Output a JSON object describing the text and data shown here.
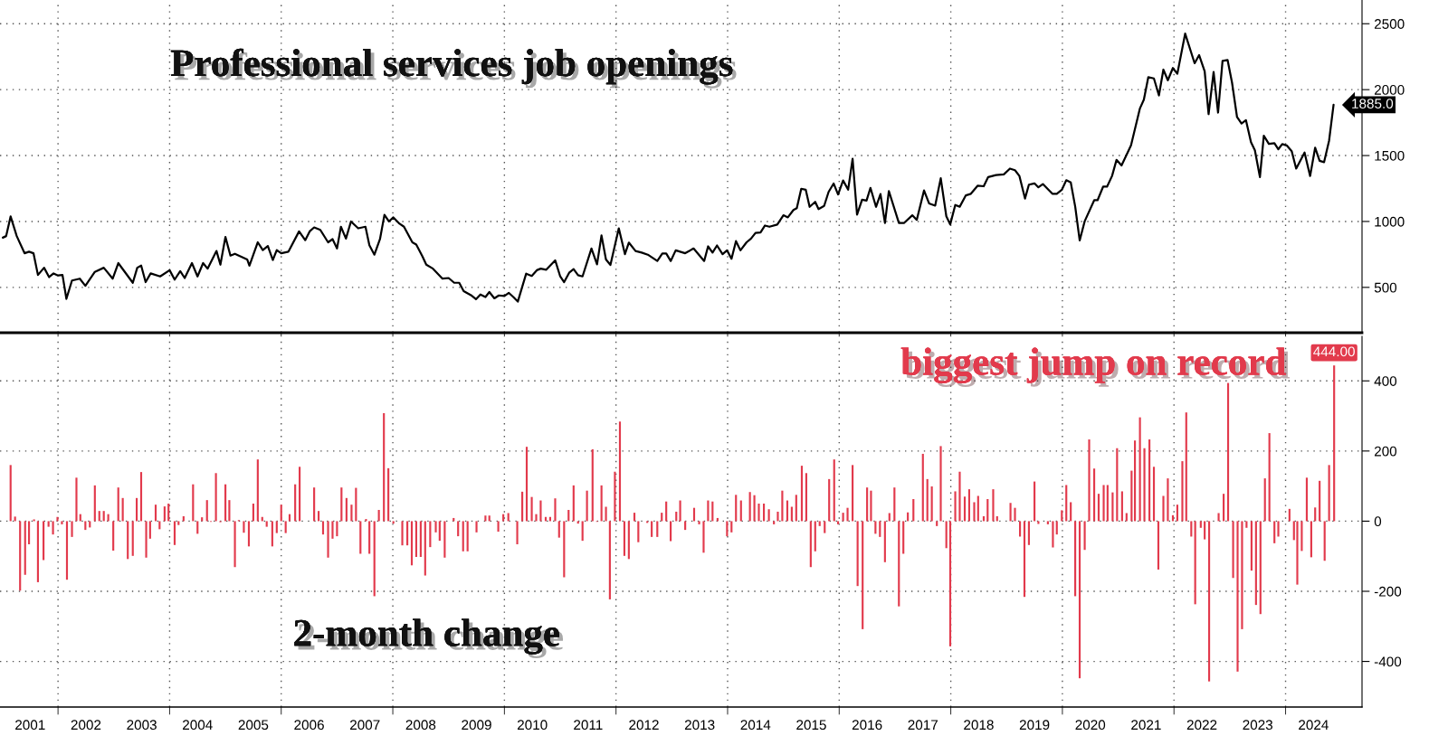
{
  "chart_data": [
    {
      "type": "line",
      "title": "Professional services job openings",
      "xlim": [
        2000.96,
        2025.37
      ],
      "ylim": [
        156,
        2680
      ],
      "yticks": [
        500,
        1000,
        1500,
        2000,
        2500
      ],
      "xticks": [
        {
          "value": 2002,
          "label": null
        },
        {
          "value": 2004,
          "label": null
        },
        {
          "value": 2006,
          "label": null
        },
        {
          "value": 2008,
          "label": null
        },
        {
          "value": 2010,
          "label": null
        },
        {
          "value": 2012,
          "label": null
        },
        {
          "value": 2014,
          "label": null
        },
        {
          "value": 2016,
          "label": null
        },
        {
          "value": 2018,
          "label": null
        },
        {
          "value": 2020,
          "label": null
        },
        {
          "value": 2022,
          "label": null
        },
        {
          "value": 2024,
          "label": null
        }
      ],
      "tick_labels": "y",
      "grid": true,
      "legend": false,
      "series": [
        {
          "color": "#000000",
          "x": [
            2001.01,
            2001.07,
            2001.15,
            2001.26,
            2001.4,
            2001.48,
            2001.56,
            2001.64,
            2001.75,
            2001.84,
            2001.92,
            2002.0,
            2002.08,
            2002.15,
            2002.25,
            2002.39,
            2002.49,
            2002.66,
            2002.82,
            2002.98,
            2003.08,
            2003.34,
            2003.42,
            2003.49,
            2003.57,
            2003.66,
            2003.83,
            2004.0,
            2004.09,
            2004.19,
            2004.27,
            2004.4,
            2004.5,
            2004.6,
            2004.68,
            2004.84,
            2004.91,
            2005.0,
            2005.09,
            2005.17,
            2005.39,
            2005.43,
            2005.58,
            2005.67,
            2005.76,
            2005.85,
            2005.92,
            2006.0,
            2006.13,
            2006.32,
            2006.43,
            2006.51,
            2006.59,
            2006.7,
            2006.84,
            2006.92,
            2007.0,
            2007.07,
            2007.16,
            2007.25,
            2007.38,
            2007.51,
            2007.58,
            2007.67,
            2007.77,
            2007.85,
            2007.93,
            2008.01,
            2008.12,
            2008.2,
            2008.35,
            2008.42,
            2008.53,
            2008.6,
            2008.72,
            2008.89,
            2009.0,
            2009.1,
            2009.19,
            2009.27,
            2009.4,
            2009.49,
            2009.57,
            2009.66,
            2009.73,
            2009.82,
            2009.9,
            2010.0,
            2010.08,
            2010.16,
            2010.24,
            2010.39,
            2010.49,
            2010.58,
            2010.65,
            2010.75,
            2010.91,
            2011.0,
            2011.07,
            2011.16,
            2011.24,
            2011.32,
            2011.4,
            2011.56,
            2011.66,
            2011.74,
            2011.82,
            2011.9,
            2012.05,
            2012.16,
            2012.23,
            2012.35,
            2012.46,
            2012.57,
            2012.74,
            2012.83,
            2012.9,
            2012.98,
            2013.07,
            2013.24,
            2013.39,
            2013.58,
            2013.65,
            2013.73,
            2013.81,
            2013.91,
            2013.99,
            2014.07,
            2014.15,
            2014.23,
            2014.34,
            2014.42,
            2014.5,
            2014.59,
            2014.67,
            2014.75,
            2014.89,
            2015.0,
            2015.08,
            2015.18,
            2015.24,
            2015.32,
            2015.4,
            2015.47,
            2015.57,
            2015.63,
            2015.73,
            2015.81,
            2015.9,
            2015.98,
            2016.07,
            2016.16,
            2016.24,
            2016.32,
            2016.41,
            2016.49,
            2016.56,
            2016.66,
            2016.74,
            2016.82,
            2016.89,
            2017.07,
            2017.16,
            2017.31,
            2017.39,
            2017.52,
            2017.61,
            2017.72,
            2017.82,
            2017.92,
            2017.99,
            2018.08,
            2018.16,
            2018.27,
            2018.36,
            2018.48,
            2018.59,
            2018.67,
            2018.81,
            2018.95,
            2019.06,
            2019.15,
            2019.23,
            2019.33,
            2019.4,
            2019.5,
            2019.57,
            2019.65,
            2019.82,
            2019.9,
            2019.99,
            2020.07,
            2020.15,
            2020.23,
            2020.31,
            2020.4,
            2020.57,
            2020.63,
            2020.73,
            2020.8,
            2020.89,
            2020.97,
            2021.06,
            2021.23,
            2021.39,
            2021.46,
            2021.54,
            2021.64,
            2021.73,
            2021.81,
            2021.89,
            2021.98,
            2022.06,
            2022.2,
            2022.37,
            2022.45,
            2022.55,
            2022.62,
            2022.71,
            2022.79,
            2022.87,
            2022.96,
            2023.04,
            2023.13,
            2023.21,
            2023.29,
            2023.38,
            2023.45,
            2023.54,
            2023.61,
            2023.7,
            2023.8,
            2023.87,
            2023.94,
            2024.02,
            2024.11,
            2024.19,
            2024.34,
            2024.44,
            2024.53,
            2024.61,
            2024.69,
            2024.78,
            2024.86
          ],
          "values": [
            877,
            889,
            1038,
            889,
            759,
            771,
            759,
            594,
            649,
            578,
            606,
            590,
            594,
            413,
            552,
            566,
            512,
            618,
            649,
            566,
            684,
            535,
            649,
            665,
            540,
            606,
            583,
            630,
            559,
            623,
            571,
            684,
            583,
            684,
            642,
            776,
            672,
            882,
            741,
            755,
            712,
            665,
            842,
            783,
            814,
            708,
            783,
            759,
            771,
            925,
            858,
            925,
            955,
            936,
            842,
            866,
            795,
            960,
            870,
            1000,
            948,
            960,
            819,
            748,
            866,
            1050,
            1000,
            1031,
            983,
            960,
            842,
            825,
            736,
            672,
            642,
            566,
            571,
            535,
            535,
            472,
            441,
            410,
            446,
            427,
            465,
            417,
            439,
            434,
            458,
            427,
            392,
            604,
            587,
            630,
            642,
            634,
            705,
            583,
            540,
            611,
            639,
            592,
            583,
            795,
            675,
            894,
            712,
            670,
            948,
            752,
            840,
            776,
            764,
            748,
            700,
            757,
            757,
            700,
            781,
            759,
            795,
            700,
            811,
            764,
            818,
            752,
            781,
            717,
            851,
            781,
            842,
            870,
            913,
            917,
            969,
            960,
            976,
            1047,
            1031,
            1087,
            1101,
            1248,
            1241,
            1111,
            1149,
            1094,
            1118,
            1224,
            1288,
            1205,
            1311,
            1241,
            1476,
            1052,
            1165,
            1158,
            1255,
            1111,
            1208,
            988,
            1231,
            988,
            988,
            1047,
            1012,
            1235,
            1137,
            1120,
            1328,
            1039,
            978,
            1125,
            1112,
            1198,
            1210,
            1271,
            1267,
            1337,
            1352,
            1357,
            1401,
            1389,
            1345,
            1174,
            1279,
            1289,
            1259,
            1284,
            1210,
            1210,
            1240,
            1313,
            1296,
            1112,
            856,
            1002,
            1161,
            1161,
            1264,
            1264,
            1345,
            1467,
            1425,
            1577,
            1858,
            1924,
            2095,
            2085,
            1956,
            2152,
            2071,
            2164,
            2120,
            2425,
            2200,
            2262,
            2139,
            1814,
            2134,
            1826,
            2218,
            2225,
            2054,
            1792,
            1743,
            1768,
            1601,
            1540,
            1337,
            1650,
            1589,
            1594,
            1548,
            1587,
            1577,
            1533,
            1401,
            1523,
            1345,
            1560,
            1460,
            1450,
            1614,
            1885
          ],
          "value_labels": [
            null,
            null,
            null,
            null,
            null,
            null,
            null,
            null,
            null,
            null,
            null,
            null,
            null,
            null,
            null,
            null,
            null,
            null,
            null,
            null,
            null,
            null,
            null,
            null,
            null,
            null,
            null,
            null,
            null,
            null,
            null,
            null,
            null,
            null,
            null,
            null,
            null,
            null,
            null,
            null,
            null,
            null,
            null,
            null,
            null,
            null,
            null,
            null,
            null,
            null,
            null,
            null,
            null,
            null,
            null,
            null,
            null,
            null,
            null,
            null,
            null,
            null,
            null,
            null,
            null,
            null,
            null,
            null,
            null,
            null,
            null,
            null,
            null,
            null,
            null,
            null,
            null,
            null,
            null,
            null,
            null,
            null,
            null,
            null,
            null,
            null,
            null,
            null,
            null,
            null,
            null,
            null,
            null,
            null,
            null,
            null,
            null,
            null,
            null,
            null,
            null,
            null,
            null,
            null,
            null,
            null,
            null,
            null,
            null,
            null,
            null,
            null,
            null,
            null,
            null,
            null,
            null,
            null,
            null,
            null,
            null,
            null,
            null,
            null,
            null,
            null,
            null,
            null,
            null,
            null,
            null,
            null,
            null,
            null,
            null,
            null,
            null,
            null,
            null,
            null,
            null,
            null,
            null,
            null,
            null,
            null,
            null,
            null,
            null,
            null,
            null,
            null,
            null,
            null,
            null,
            null,
            null,
            null,
            null,
            null,
            null,
            null,
            null,
            null,
            null,
            null,
            null,
            null,
            null,
            null,
            null,
            null,
            null,
            null,
            null,
            null,
            null,
            null,
            null,
            null,
            null,
            null,
            null,
            null,
            null,
            null,
            null,
            null,
            null,
            null,
            null,
            null,
            null,
            null,
            null,
            null,
            null,
            null,
            null,
            null,
            null,
            null,
            null,
            null,
            null,
            null,
            null,
            null,
            null,
            null,
            null,
            null,
            null,
            null,
            null,
            null,
            null,
            null,
            null,
            null,
            null,
            null,
            null,
            null,
            null,
            null,
            null,
            null,
            null,
            null,
            null,
            null,
            null,
            null,
            null,
            null,
            null,
            null,
            null,
            null,
            null,
            null,
            null,
            "1885.0"
          ]
        }
      ]
    },
    {
      "type": "bar",
      "title": "2-month change",
      "xlim": [
        2000.96,
        2025.37
      ],
      "ylim": [
        -530,
        527
      ],
      "yticks": [
        -400,
        -200,
        0,
        200,
        400
      ],
      "xticks": [
        {
          "value": 2001.5,
          "label": "2001"
        },
        {
          "value": 2002.5,
          "label": "2002"
        },
        {
          "value": 2003.5,
          "label": "2003"
        },
        {
          "value": 2004.5,
          "label": "2004"
        },
        {
          "value": 2005.5,
          "label": "2005"
        },
        {
          "value": 2006.5,
          "label": "2006"
        },
        {
          "value": 2007.5,
          "label": "2007"
        },
        {
          "value": 2008.5,
          "label": "2008"
        },
        {
          "value": 2009.5,
          "label": "2009"
        },
        {
          "value": 2010.5,
          "label": "2010"
        },
        {
          "value": 2011.5,
          "label": "2011"
        },
        {
          "value": 2012.5,
          "label": "2012"
        },
        {
          "value": 2013.5,
          "label": "2013"
        },
        {
          "value": 2014.5,
          "label": "2014"
        },
        {
          "value": 2015.5,
          "label": "2015"
        },
        {
          "value": 2016.5,
          "label": "2016"
        },
        {
          "value": 2017.5,
          "label": "2017"
        },
        {
          "value": 2018.5,
          "label": "2018"
        },
        {
          "value": 2019.5,
          "label": "2019"
        },
        {
          "value": 2020.5,
          "label": "2020"
        },
        {
          "value": 2021.5,
          "label": "2021"
        },
        {
          "value": 2022.5,
          "label": "2022"
        },
        {
          "value": 2023.5,
          "label": "2023"
        },
        {
          "value": 2024.5,
          "label": "2024"
        },
        {
          "value": 2002,
          "label": null
        },
        {
          "value": 2004,
          "label": null
        },
        {
          "value": 2006,
          "label": null
        },
        {
          "value": 2008,
          "label": null
        },
        {
          "value": 2010,
          "label": null
        },
        {
          "value": 2012,
          "label": null
        },
        {
          "value": 2014,
          "label": null
        },
        {
          "value": 2016,
          "label": null
        },
        {
          "value": 2018,
          "label": null
        },
        {
          "value": 2020,
          "label": null
        },
        {
          "value": 2022,
          "label": null
        },
        {
          "value": 2024,
          "label": null
        }
      ],
      "grid": true,
      "legend": false,
      "annotations": [
        {
          "text": "biggest jump on record",
          "x": 2024.87,
          "y": 444
        }
      ],
      "series": [
        {
          "color": "#e23a4c",
          "x": [
            2001.15,
            2001.23,
            2001.32,
            2001.41,
            2001.48,
            2001.57,
            2001.64,
            2001.74,
            2001.83,
            2001.91,
            2001.99,
            2002.07,
            2002.16,
            2002.25,
            2002.33,
            2002.4,
            2002.49,
            2002.57,
            2002.66,
            2002.74,
            2002.82,
            2002.9,
            2002.99,
            2003.08,
            2003.16,
            2003.25,
            2003.34,
            2003.41,
            2003.49,
            2003.58,
            2003.65,
            2003.75,
            2003.82,
            2003.91,
            2003.98,
            2004.09,
            2004.16,
            2004.25,
            2004.34,
            2004.42,
            2004.5,
            2004.58,
            2004.67,
            2004.74,
            2004.83,
            2004.91,
            2005.0,
            2005.07,
            2005.17,
            2005.24,
            2005.33,
            2005.42,
            2005.5,
            2005.58,
            2005.66,
            2005.74,
            2005.84,
            2005.92,
            2006.0,
            2006.08,
            2006.15,
            2006.25,
            2006.33,
            2006.59,
            2006.67,
            2006.75,
            2006.84,
            2006.92,
            2007.0,
            2007.08,
            2007.17,
            2007.26,
            2007.34,
            2007.42,
            2007.52,
            2007.58,
            2007.67,
            2007.75,
            2007.84,
            2007.92,
            2008.01,
            2008.17,
            2008.26,
            2008.34,
            2008.42,
            2008.5,
            2008.58,
            2008.67,
            2008.77,
            2008.84,
            2008.93,
            2009.09,
            2009.17,
            2009.26,
            2009.34,
            2009.5,
            2009.66,
            2009.73,
            2009.89,
            2009.98,
            2010.07,
            2010.23,
            2010.32,
            2010.4,
            2010.49,
            2010.57,
            2010.65,
            2010.74,
            2010.82,
            2010.91,
            2010.98,
            2011.07,
            2011.15,
            2011.24,
            2011.32,
            2011.4,
            2011.48,
            2011.58,
            2011.66,
            2011.74,
            2011.82,
            2011.89,
            2011.98,
            2012.07,
            2012.15,
            2012.23,
            2012.33,
            2012.4,
            2012.56,
            2012.64,
            2012.74,
            2012.82,
            2012.9,
            2012.98,
            2013.08,
            2013.15,
            2013.24,
            2013.4,
            2013.49,
            2013.57,
            2013.65,
            2013.73,
            2013.82,
            2013.99,
            2014.07,
            2014.15,
            2014.24,
            2014.4,
            2014.48,
            2014.56,
            2014.65,
            2014.74,
            2014.83,
            2014.9,
            2014.98,
            2015.07,
            2015.15,
            2015.23,
            2015.33,
            2015.41,
            2015.49,
            2015.57,
            2015.65,
            2015.74,
            2015.82,
            2015.91,
            2015.98,
            2016.07,
            2016.15,
            2016.24,
            2016.33,
            2016.42,
            2016.5,
            2016.57,
            2016.65,
            2016.73,
            2016.82,
            2016.9,
            2016.99,
            2017.07,
            2017.15,
            2017.23,
            2017.33,
            2017.5,
            2017.58,
            2017.66,
            2017.75,
            2017.82,
            2017.92,
            2017.99,
            2018.08,
            2018.16,
            2018.25,
            2018.33,
            2018.42,
            2018.49,
            2018.59,
            2018.66,
            2018.76,
            2018.83,
            2019.07,
            2019.15,
            2019.24,
            2019.32,
            2019.4,
            2019.5,
            2019.57,
            2019.74,
            2019.83,
            2019.9,
            2019.99,
            2020.07,
            2020.15,
            2020.23,
            2020.31,
            2020.4,
            2020.48,
            2020.57,
            2020.65,
            2020.74,
            2020.81,
            2020.9,
            2020.98,
            2021.07,
            2021.15,
            2021.24,
            2021.3,
            2021.39,
            2021.47,
            2021.56,
            2021.64,
            2021.72,
            2021.81,
            2021.89,
            2021.98,
            2022.06,
            2022.15,
            2022.22,
            2022.31,
            2022.38,
            2022.48,
            2022.55,
            2022.63,
            2022.8,
            2022.89,
            2022.97,
            2023.06,
            2023.14,
            2023.22,
            2023.3,
            2023.39,
            2023.47,
            2023.55,
            2023.63,
            2023.71,
            2023.8,
            2023.87,
            2024.07,
            2024.15,
            2024.21,
            2024.29,
            2024.38,
            2024.46,
            2024.53,
            2024.61,
            2024.7,
            2024.78,
            2024.87
          ],
          "values": [
            160,
            13,
            -198,
            -153,
            -66,
            5,
            -174,
            -111,
            -16,
            -38,
            12,
            -9,
            -167,
            -45,
            124,
            20,
            -25,
            -18,
            102,
            29,
            29,
            20,
            -84,
            96,
            66,
            -108,
            -99,
            66,
            140,
            -104,
            -50,
            47,
            -23,
            42,
            50,
            -68,
            -11,
            14,
            null,
            105,
            -36,
            11,
            60,
            -2,
            137,
            -3,
            105,
            60,
            -131,
            3,
            -33,
            -72,
            50,
            176,
            12,
            -16,
            -72,
            -34,
            47,
            -34,
            20,
            105,
            155,
            96,
            29,
            -38,
            -104,
            -50,
            -43,
            96,
            66,
            47,
            95,
            -93,
            6,
            -93,
            -214,
            32,
            308,
            151,
            -7,
            -69,
            -69,
            -126,
            -102,
            -102,
            -155,
            -74,
            -32,
            -56,
            -104,
            9,
            -43,
            -86,
            -86,
            -32,
            16,
            16,
            -30,
            20,
            23,
            -66,
            84,
            212,
            69,
            20,
            59,
            12,
            12,
            65,
            -47,
            -160,
            32,
            102,
            -7,
            -56,
            87,
            205,
            -2,
            102,
            41,
            -223,
            141,
            284,
            -99,
            -108,
            24,
            -60,
            -5,
            -45,
            -45,
            24,
            56,
            -57,
            27,
            59,
            -25,
            38,
            -9,
            -90,
            59,
            56,
            9,
            -43,
            -32,
            75,
            59,
            83,
            74,
            50,
            50,
            34,
            -9,
            27,
            87,
            59,
            41,
            75,
            158,
            137,
            -131,
            -86,
            -14,
            -34,
            120,
            176,
            -9,
            24,
            38,
            160,
            -185,
            -308,
            96,
            87,
            -36,
            -45,
            -117,
            23,
            96,
            -243,
            -93,
            25,
            63,
            192,
            120,
            99,
            -14,
            214,
            -77,
            -357,
            85,
            141,
            70,
            91,
            54,
            72,
            14,
            63,
            91,
            14,
            52,
            38,
            -44,
            -216,
            -68,
            113,
            -8,
            -9,
            -75,
            -38,
            31,
            103,
            54,
            -214,
            -448,
            -82,
            233,
            150,
            78,
            103,
            103,
            82,
            208,
            85,
            23,
            144,
            230,
            296,
            208,
            233,
            155,
            -138,
            72,
            122,
            17,
            47,
            171,
            310,
            -44,
            -237,
            -19,
            -52,
            -457,
            23,
            78,
            394,
            -162,
            -429,
            -308,
            -19,
            -141,
            -239,
            -265,
            122,
            251,
            -63,
            -44,
            35,
            -54,
            -181,
            -85,
            124,
            -103,
            39,
            115,
            -113,
            160,
            444
          ],
          "value_labels": [
            null,
            null,
            null,
            null,
            null,
            null,
            null,
            null,
            null,
            null,
            null,
            null,
            null,
            null,
            null,
            null,
            null,
            null,
            null,
            null,
            null,
            null,
            null,
            null,
            null,
            null,
            null,
            null,
            null,
            null,
            null,
            null,
            null,
            null,
            null,
            null,
            null,
            null,
            null,
            null,
            null,
            null,
            null,
            null,
            null,
            null,
            null,
            null,
            null,
            null,
            null,
            null,
            null,
            null,
            null,
            null,
            null,
            null,
            null,
            null,
            null,
            null,
            null,
            null,
            null,
            null,
            null,
            null,
            null,
            null,
            null,
            null,
            null,
            null,
            null,
            null,
            null,
            null,
            null,
            null,
            null,
            null,
            null,
            null,
            null,
            null,
            null,
            null,
            null,
            null,
            null,
            null,
            null,
            null,
            null,
            null,
            null,
            null,
            null,
            null,
            null,
            null,
            null,
            null,
            null,
            null,
            null,
            null,
            null,
            null,
            null,
            null,
            null,
            null,
            null,
            null,
            null,
            null,
            null,
            null,
            null,
            null,
            null,
            null,
            null,
            null,
            null,
            null,
            null,
            null,
            null,
            null,
            null,
            null,
            null,
            null,
            null,
            null,
            null,
            null,
            null,
            null,
            null,
            null,
            null,
            null,
            null,
            null,
            null,
            null,
            null,
            null,
            null,
            null,
            null,
            null,
            null,
            null,
            null,
            null,
            null,
            null,
            null,
            null,
            null,
            null,
            null,
            null,
            null,
            null,
            null,
            null,
            null,
            null,
            null,
            null,
            null,
            null,
            null,
            null,
            null,
            null,
            null,
            null,
            null,
            null,
            null,
            null,
            null,
            null,
            null,
            null,
            null,
            null,
            null,
            null,
            null,
            null,
            null,
            null,
            null,
            null,
            null,
            null,
            null,
            null,
            null,
            null,
            null,
            null,
            null,
            null,
            null,
            null,
            null,
            null,
            null,
            null,
            null,
            null,
            null,
            null,
            null,
            null,
            null,
            null,
            null,
            null,
            null,
            null,
            null,
            null,
            null,
            null,
            null,
            null,
            null,
            null,
            null,
            null,
            null,
            null,
            null,
            null,
            null,
            null,
            null,
            null,
            null,
            null,
            null,
            null,
            null,
            null,
            null,
            null,
            null,
            null,
            null,
            null,
            null,
            null,
            null,
            null,
            null,
            null,
            null,
            "444.00"
          ]
        }
      ]
    }
  ]
}
